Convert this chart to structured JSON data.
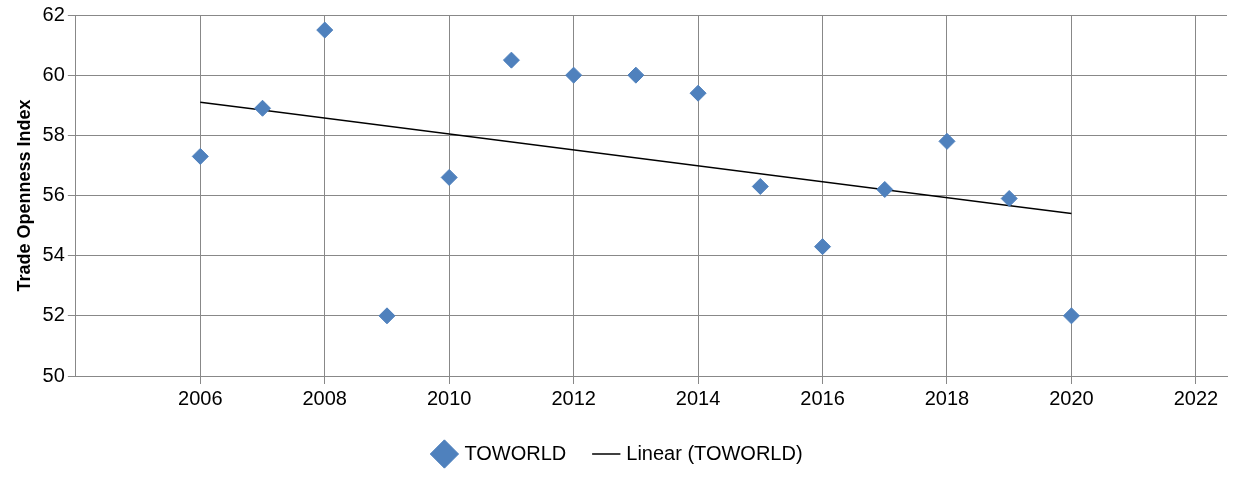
{
  "chart_data": {
    "type": "scatter",
    "ylabel": "Trade Openness Index",
    "x": [
      2006,
      2007,
      2008,
      2009,
      2010,
      2011,
      2012,
      2013,
      2014,
      2015,
      2016,
      2017,
      2018,
      2019,
      2020
    ],
    "series": [
      {
        "name": "TOWORLD",
        "type": "scatter",
        "color": "#4f81bd",
        "marker": "diamond",
        "values": [
          57.3,
          58.9,
          61.5,
          52.0,
          56.6,
          60.5,
          60.0,
          60.0,
          59.4,
          56.3,
          54.3,
          56.2,
          57.8,
          55.9,
          52.0
        ]
      },
      {
        "name": "Linear (TOWORLD)",
        "type": "line",
        "color": "#000000",
        "marker": "none",
        "line_style": "solid",
        "x": [
          2006,
          2020
        ],
        "values": [
          59.1,
          55.4
        ]
      }
    ],
    "xlim": [
      2004,
      2022.5
    ],
    "xticks": [
      2006,
      2008,
      2010,
      2012,
      2014,
      2016,
      2018,
      2020,
      2022
    ],
    "ylim": [
      50,
      62
    ],
    "yticks": [
      50,
      52,
      54,
      56,
      58,
      60,
      62
    ],
    "grid": true,
    "legend": "bottom"
  }
}
